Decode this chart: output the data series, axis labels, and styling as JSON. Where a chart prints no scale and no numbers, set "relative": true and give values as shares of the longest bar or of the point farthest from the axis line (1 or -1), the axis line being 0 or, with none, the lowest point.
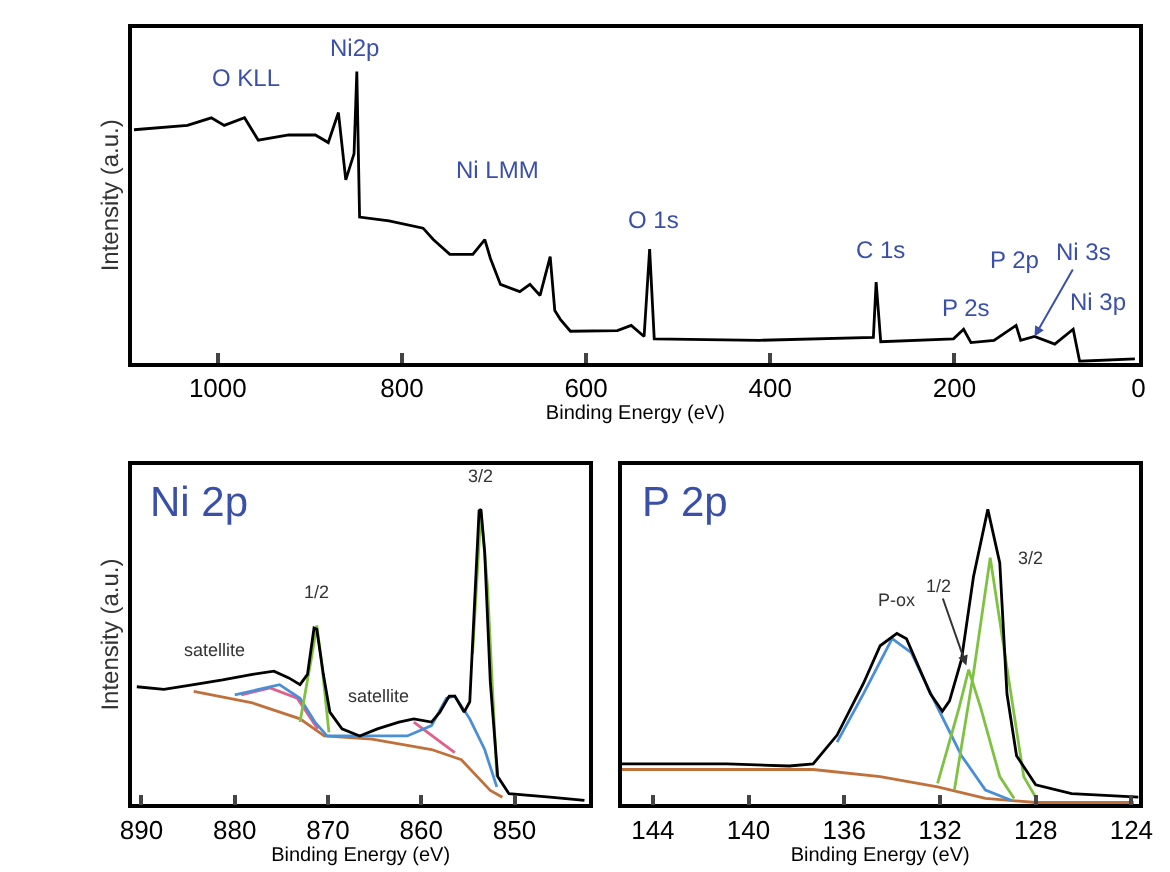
{
  "chart_data": [
    {
      "type": "line",
      "relative": true,
      "xlabel": "Binding Energy (eV)",
      "ylabel": "Intensity (a.u.)",
      "xlim": [
        1093,
        0
      ],
      "xticks": [
        1000,
        800,
        600,
        400,
        200,
        0
      ],
      "tick_labels": "x",
      "series": [
        {
          "color": "#000000",
          "x": [
            1091,
            1033,
            1007,
            993,
            971,
            956,
            923,
            894,
            880,
            869,
            861,
            852,
            849,
            846,
            814,
            777,
            766,
            748,
            723,
            710,
            704,
            693,
            672,
            661,
            650,
            639,
            634,
            628,
            617,
            566,
            551,
            537,
            531,
            526,
            412,
            288,
            285,
            280,
            201,
            190,
            182,
            157,
            133,
            128,
            113,
            91,
            71,
            64,
            4
          ],
          "values": [
            0.8,
            0.815,
            0.841,
            0.815,
            0.841,
            0.764,
            0.782,
            0.782,
            0.756,
            0.859,
            0.628,
            0.718,
            1.0,
            0.5,
            0.487,
            0.462,
            0.423,
            0.372,
            0.372,
            0.423,
            0.359,
            0.269,
            0.244,
            0.269,
            0.231,
            0.364,
            0.179,
            0.149,
            0.108,
            0.11,
            0.128,
            0.09,
            0.39,
            0.082,
            0.077,
            0.087,
            0.277,
            0.072,
            0.082,
            0.115,
            0.069,
            0.077,
            0.128,
            0.077,
            0.09,
            0.064,
            0.115,
            0.005,
            0.013
          ]
        }
      ],
      "annotations": [
        "O KLL",
        "Ni2p",
        "Ni LMM",
        "O 1s",
        "C 1s",
        "P 2s",
        "P 2p",
        {
          "text": "Ni 3s",
          "x": 113,
          "y": 0.09
        },
        "Ni 3p"
      ]
    },
    {
      "type": "line",
      "relative": true,
      "title": "Ni 2p",
      "xlabel": "Binding Energy (eV)",
      "ylabel": "Intensity (a.u.)",
      "xlim": [
        891,
        842
      ],
      "xticks": [
        890,
        880,
        870,
        860,
        850
      ],
      "tick_labels": "x",
      "series": [
        {
          "color": "#c0703a",
          "x": [
            884.4,
            878.1,
            873.0,
            870.4,
            865.3,
            858.9,
            855.7,
            852.6,
            851.3
          ],
          "values": [
            0.382,
            0.343,
            0.289,
            0.231,
            0.22,
            0.185,
            0.15,
            0.046,
            0.023
          ]
        },
        {
          "color": "#e0608a",
          "x": [
            879.3,
            876.2,
            873.3,
            871.1,
            862.8,
            860.8,
            856.4
          ],
          "values": [
            0.37,
            0.394,
            0.359,
            0.255,
            null,
            0.278,
            0.174
          ]
        },
        {
          "color": "#4a8fd6",
          "x": [
            880.0,
            875.2,
            873.0,
            871.4,
            870.1,
            861.5,
            858.9,
            857.3,
            856.4,
            854.8,
            853.2,
            851.9
          ],
          "values": [
            0.37,
            0.405,
            0.359,
            0.278,
            0.231,
            0.231,
            0.266,
            0.359,
            0.366,
            0.289,
            0.185,
            0.058
          ]
        },
        {
          "color": "#7fc241",
          "x": [
            873.0,
            871.7,
            871.2,
            870.7,
            869.9,
            855.7,
            854.5,
            853.6,
            852.9,
            851.9
          ],
          "values": [
            0.278,
            0.509,
            0.606,
            0.486,
            0.243,
            null,
            0.509,
            0.995,
            0.741,
            0.093
          ]
        },
        {
          "color": "#000000",
          "x": [
            890.5,
            887.6,
            884.4,
            881.3,
            878.1,
            875.8,
            874.2,
            873.0,
            872.2,
            871.5,
            871.2,
            870.5,
            869.8,
            868.5,
            866.6,
            864.7,
            862.4,
            860.8,
            858.9,
            858.0,
            857.0,
            856.4,
            855.4,
            854.8,
            853.8,
            853.6,
            853.2,
            852.6,
            851.8,
            850.6,
            846.2,
            842.5
          ],
          "values": [
            0.398,
            0.389,
            0.405,
            0.421,
            0.44,
            0.451,
            0.428,
            0.405,
            0.44,
            0.597,
            0.593,
            0.44,
            0.312,
            0.255,
            0.231,
            0.255,
            0.278,
            0.289,
            0.278,
            0.312,
            0.366,
            0.366,
            0.312,
            0.347,
            0.995,
            1.0,
            0.856,
            0.417,
            0.093,
            0.035,
            0.023,
            0.012
          ]
        }
      ],
      "annotations": [
        {
          "text": "satellite",
          "x": 882.2,
          "y": 0.41
        },
        {
          "text": "1/2",
          "x": 871.2,
          "y": 0.606
        },
        {
          "text": "satellite",
          "x": 864.5,
          "y": 0.25
        },
        {
          "text": "3/2",
          "x": 853.6,
          "y": 1.0
        }
      ]
    },
    {
      "type": "line",
      "relative": true,
      "title": "P 2p",
      "xlabel": "Binding Energy (eV)",
      "xlim": [
        145.3,
        123.7
      ],
      "xticks": [
        144,
        140,
        136,
        132,
        128,
        124
      ],
      "tick_labels": "x",
      "series": [
        {
          "color": "#c0703a",
          "x": [
            145.3,
            137.3,
            134.5,
            132.1,
            130.1,
            128.0,
            123.9
          ],
          "values": [
            0.117,
            0.117,
            0.093,
            0.058,
            0.019,
            0.005,
            0.005
          ]
        },
        {
          "color": "#4a8fd6",
          "x": [
            136.3,
            135.2,
            134.0,
            133.2,
            132.1,
            131.1,
            130.1,
            129.0
          ],
          "values": [
            0.21,
            0.374,
            0.561,
            0.514,
            0.327,
            0.164,
            0.047,
            0.012
          ]
        },
        {
          "color": "#7fc241",
          "x": [
            132.1,
            131.2,
            130.8,
            130.3,
            129.5,
            128.9
          ],
          "values": [
            0.07,
            0.327,
            0.456,
            0.327,
            0.093,
            0.019
          ]
        },
        {
          "color": "#7fc241",
          "x": [
            131.4,
            130.6,
            129.9,
            129.3,
            128.5,
            128.0
          ],
          "values": [
            0.047,
            0.444,
            0.836,
            0.514,
            0.093,
            0.023
          ]
        },
        {
          "color": "#000000",
          "x": [
            145.3,
            143.5,
            140.9,
            138.3,
            137.3,
            136.3,
            135.2,
            134.5,
            133.8,
            133.4,
            132.9,
            132.4,
            131.9,
            131.6,
            131.1,
            130.6,
            130.0,
            129.5,
            129.2,
            128.8,
            128.0,
            126.5,
            123.7
          ],
          "values": [
            0.136,
            0.136,
            0.136,
            0.129,
            0.136,
            0.234,
            0.409,
            0.537,
            0.579,
            0.561,
            0.467,
            0.374,
            0.315,
            0.35,
            0.491,
            0.771,
            1.0,
            0.818,
            0.374,
            0.164,
            0.065,
            0.035,
            0.023
          ]
        }
      ],
      "annotations": [
        {
          "text": "P-ox",
          "x": 133.8,
          "y": 0.579
        },
        {
          "text": "1/2",
          "x": 130.9,
          "y": 0.47
        },
        {
          "text": "3/2",
          "x": 129.9,
          "y": 0.836
        }
      ]
    }
  ]
}
